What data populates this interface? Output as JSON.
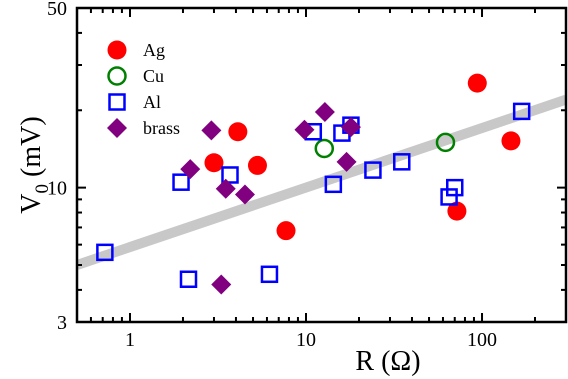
{
  "chart_data": {
    "type": "scatter",
    "xscale": "log",
    "yscale": "log",
    "xlim": [
      0.5,
      300
    ],
    "ylim": [
      3,
      50
    ],
    "xlabel": "R (Ω)",
    "ylabel": {
      "main": "V",
      "sub": "0",
      "rest": " (mV)"
    },
    "xticks": [
      {
        "value": 1,
        "label": "1"
      },
      {
        "value": 10,
        "label": "10"
      },
      {
        "value": 100,
        "label": "100"
      }
    ],
    "yticks": [
      {
        "value": 3,
        "label": "3"
      },
      {
        "value": 10,
        "label": "10"
      },
      {
        "value": 50,
        "label": "50"
      }
    ],
    "grid": false,
    "legend": {
      "position": "top-left"
    },
    "trend_line": {
      "color": "#c8c8c8",
      "points": [
        [
          0.5,
          5.0
        ],
        [
          300,
          22.0
        ]
      ]
    },
    "series": [
      {
        "name": "Ag",
        "marker": "filled-circle",
        "color": "#ff0000",
        "points": [
          [
            3.0,
            12.5
          ],
          [
            4.1,
            16.5
          ],
          [
            5.3,
            12.2
          ],
          [
            7.7,
            6.8
          ],
          [
            72,
            8.1
          ],
          [
            94,
            25.5
          ],
          [
            146,
            15.2
          ]
        ]
      },
      {
        "name": "Cu",
        "marker": "open-circle",
        "color": "#008000",
        "points": [
          [
            12.7,
            14.2
          ],
          [
            62,
            15.0
          ]
        ]
      },
      {
        "name": "Al",
        "marker": "open-square",
        "color": "#0000ff",
        "points": [
          [
            0.72,
            5.6
          ],
          [
            1.95,
            10.5
          ],
          [
            2.15,
            4.4
          ],
          [
            3.7,
            11.2
          ],
          [
            6.2,
            4.6
          ],
          [
            11.0,
            16.5
          ],
          [
            14.3,
            10.3
          ],
          [
            16.0,
            16.3
          ],
          [
            18.0,
            17.5
          ],
          [
            24.0,
            11.7
          ],
          [
            35.0,
            12.6
          ],
          [
            65.0,
            9.2
          ],
          [
            70.0,
            10.0
          ],
          [
            168.0,
            19.8
          ]
        ]
      },
      {
        "name": "brass",
        "marker": "filled-diamond",
        "color": "#800080",
        "points": [
          [
            2.2,
            11.8
          ],
          [
            2.9,
            16.7
          ],
          [
            3.3,
            4.2
          ],
          [
            3.5,
            9.9
          ],
          [
            4.5,
            9.4
          ],
          [
            9.8,
            16.8
          ],
          [
            12.8,
            19.7
          ],
          [
            17.0,
            12.6
          ],
          [
            18.0,
            17.2
          ]
        ]
      }
    ]
  }
}
